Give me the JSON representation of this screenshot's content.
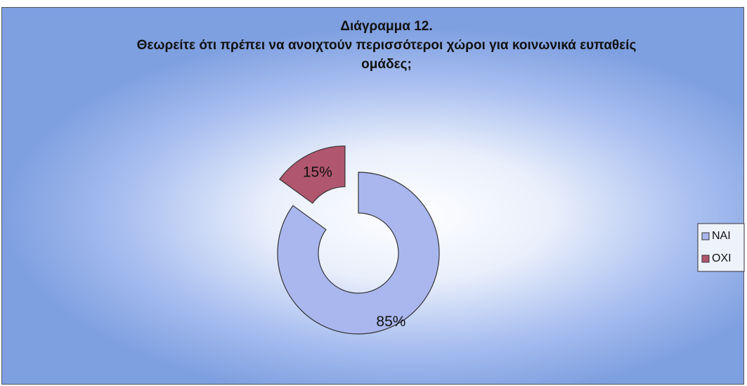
{
  "chart_data": {
    "type": "doughnut",
    "title": "Διάγραμμα 12.",
    "subtitle": "Θεωρείτε ότι πρέπει να ανοιχτούν περισσότεροι χώροι για κοινωνικά ευπαθείς ομάδες;",
    "categories": [
      "NAI",
      "OXI"
    ],
    "values": [
      85,
      15
    ],
    "value_labels": [
      "85%",
      "15%"
    ],
    "colors": [
      "#aab7ef",
      "#b0566f"
    ],
    "exploded": [
      false,
      true
    ],
    "legend": "right"
  }
}
